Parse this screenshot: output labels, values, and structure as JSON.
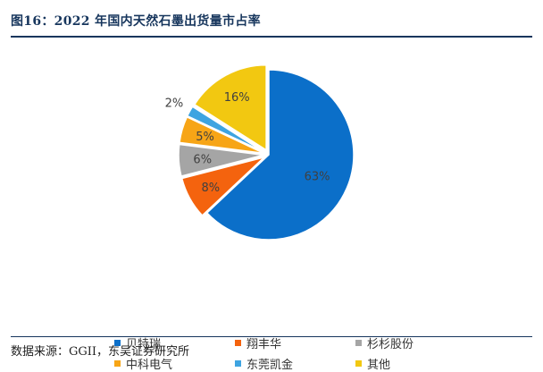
{
  "title": "图16：2022 年国内天然石墨出货量市占率",
  "source": "数据来源：GGII，东吴证券研究所",
  "chart_data": {
    "type": "pie",
    "title": "",
    "slices": [
      {
        "name": "贝特瑞",
        "value": 63,
        "label": "63%",
        "color": "#0b6fc9"
      },
      {
        "name": "翔丰华",
        "value": 8,
        "label": "8%",
        "color": "#f4630e"
      },
      {
        "name": "杉杉股份",
        "value": 6,
        "label": "6%",
        "color": "#a5a5a5"
      },
      {
        "name": "中科电气",
        "value": 5,
        "label": "5%",
        "color": "#f7a516"
      },
      {
        "name": "东莞凯金",
        "value": 2,
        "label": "2%",
        "color": "#3ea4e1"
      },
      {
        "name": "其他",
        "value": 16,
        "label": "16%",
        "color": "#f2c811"
      }
    ],
    "start_angle_deg": 0,
    "direction": "clockwise",
    "legend_position": "bottom"
  }
}
